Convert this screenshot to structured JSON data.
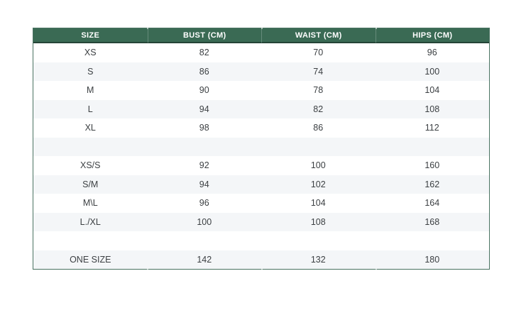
{
  "colors": {
    "header_bg": "#3a6a54",
    "header_text": "#ffffff",
    "table_border": "#4b7362",
    "header_divider": "rgba(17,34,27,0.5)",
    "row_bg": "#ffffff",
    "row_alt_bg": "#f4f6f8",
    "cell_text": "#3c4043",
    "page_bg": "#ffffff"
  },
  "size_chart": {
    "columns": [
      "SIZE",
      "BUST (CM)",
      "WAIST (CM)",
      "HIPS (CM)"
    ],
    "rows": [
      [
        "XS",
        "82",
        "70",
        "96"
      ],
      [
        "S",
        "86",
        "74",
        "100"
      ],
      [
        "M",
        "90",
        "78",
        "104"
      ],
      [
        "L",
        "94",
        "82",
        "108"
      ],
      [
        "XL",
        "98",
        "86",
        "112"
      ],
      [
        "",
        "",
        "",
        ""
      ],
      [
        "XS/S",
        "92",
        "100",
        "160"
      ],
      [
        "S/M",
        "94",
        "102",
        "162"
      ],
      [
        "M\\L",
        "96",
        "104",
        "164"
      ],
      [
        "L./XL",
        "100",
        "108",
        "168"
      ],
      [
        "",
        "",
        "",
        ""
      ],
      [
        "ONE SIZE",
        "142",
        "132",
        "180"
      ]
    ]
  }
}
